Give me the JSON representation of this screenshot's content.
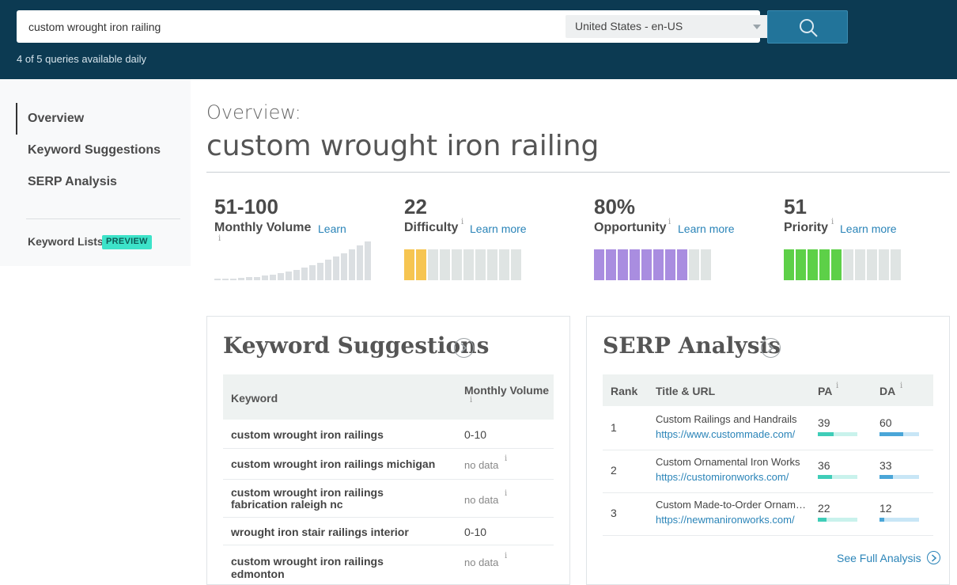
{
  "header": {
    "search_value": "custom wrought iron railing",
    "locale": "United States - en-US",
    "queries_note": "4 of 5 queries available daily"
  },
  "sidebar": {
    "items": [
      {
        "label": "Overview",
        "active": true
      },
      {
        "label": "Keyword Suggestions",
        "active": false
      },
      {
        "label": "SERP Analysis",
        "active": false
      }
    ],
    "keyword_lists": "Keyword Lists",
    "preview_badge": "PREVIEW"
  },
  "overview": {
    "label": "Overview:",
    "title": "custom wrought iron railing"
  },
  "metrics": {
    "volume": {
      "value": "51-100",
      "label": "Monthly Volume",
      "learn": "Learn",
      "info": "i"
    },
    "difficulty": {
      "value": "22",
      "label": "Difficulty",
      "learn": "Learn more",
      "info": "i",
      "filled_segments": 2,
      "total_segments": 10,
      "color": "#f6c551"
    },
    "opportunity": {
      "value": "80%",
      "label": "Opportunity",
      "learn": "Learn more",
      "info": "i",
      "filled_segments": 8,
      "total_segments": 10,
      "color": "#a98de0"
    },
    "priority": {
      "value": "51",
      "label": "Priority",
      "learn": "Learn more",
      "info": "i",
      "filled_segments": 5,
      "total_segments": 10,
      "color": "#5dd048"
    }
  },
  "keyword_suggestions": {
    "title": "Keyword Suggestions",
    "columns": [
      "Keyword",
      "Monthly Volume"
    ],
    "rows": [
      {
        "keyword": "custom wrought iron railings",
        "volume": "0-10",
        "nodata": false
      },
      {
        "keyword": "custom wrought iron railings michigan",
        "volume": "no data",
        "nodata": true
      },
      {
        "keyword": "custom wrought iron railings fabrication raleigh nc",
        "volume": "no data",
        "nodata": true
      },
      {
        "keyword": "wrought iron stair railings interior",
        "volume": "0-10",
        "nodata": false
      },
      {
        "keyword": "custom wrought iron railings edmonton",
        "volume": "no data",
        "nodata": true
      }
    ]
  },
  "serp_analysis": {
    "title": "SERP Analysis",
    "columns": [
      "Rank",
      "Title & URL",
      "PA",
      "DA"
    ],
    "rows": [
      {
        "rank": "1",
        "title": "Custom Railings and Handrails",
        "url": "https://www.custommade.com/",
        "pa": "39",
        "da": "60"
      },
      {
        "rank": "2",
        "title": "Custom Ornamental Iron Works",
        "url": "https://customironworks.com/",
        "pa": "36",
        "da": "33"
      },
      {
        "rank": "3",
        "title": "Custom Made-to-Order Ornamental Iron",
        "url": "https://newmanironworks.com/",
        "pa": "22",
        "da": "12"
      }
    ],
    "see_full": "See Full Analysis",
    "pa_color": "#3fcdb8",
    "da_color": "#4aa6d8"
  }
}
